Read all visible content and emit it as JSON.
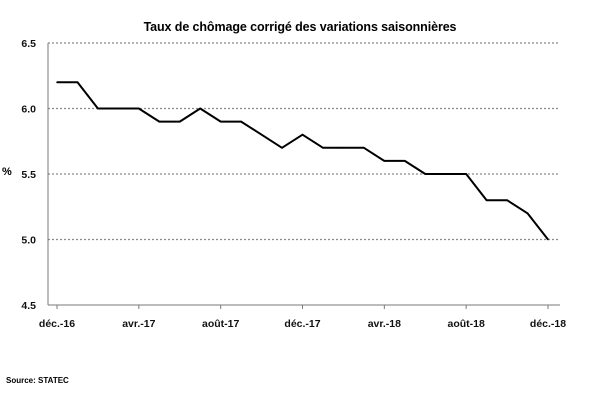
{
  "chart_data": {
    "type": "line",
    "title": "Taux de chômage corrigé des variations saisonnières",
    "xlabel": "",
    "ylabel": "%",
    "source": "Source: STATEC",
    "ylim": [
      4.5,
      6.5
    ],
    "y_ticks": [
      4.5,
      5.0,
      5.5,
      6.0,
      6.5
    ],
    "y_tick_labels": [
      "4.5",
      "5.0",
      "5.5",
      "6.0",
      "6.5"
    ],
    "x_tick_labels": [
      "déc.-16",
      "avr.-17",
      "août-17",
      "déc.-17",
      "avr.-18",
      "août-18",
      "déc.-18"
    ],
    "grid": true,
    "x": [
      "2016-12",
      "2017-01",
      "2017-02",
      "2017-03",
      "2017-04",
      "2017-05",
      "2017-06",
      "2017-07",
      "2017-08",
      "2017-09",
      "2017-10",
      "2017-11",
      "2017-12",
      "2018-01",
      "2018-02",
      "2018-03",
      "2018-04",
      "2018-05",
      "2018-06",
      "2018-07",
      "2018-08",
      "2018-09",
      "2018-10",
      "2018-11",
      "2018-12"
    ],
    "series": [
      {
        "values": [
          6.2,
          6.2,
          6.0,
          6.0,
          6.0,
          5.9,
          5.9,
          6.0,
          5.9,
          5.9,
          5.8,
          5.7,
          5.8,
          5.7,
          5.7,
          5.7,
          5.6,
          5.6,
          5.5,
          5.5,
          5.5,
          5.3,
          5.3,
          5.2,
          5.0
        ],
        "color": "#000000"
      }
    ]
  }
}
